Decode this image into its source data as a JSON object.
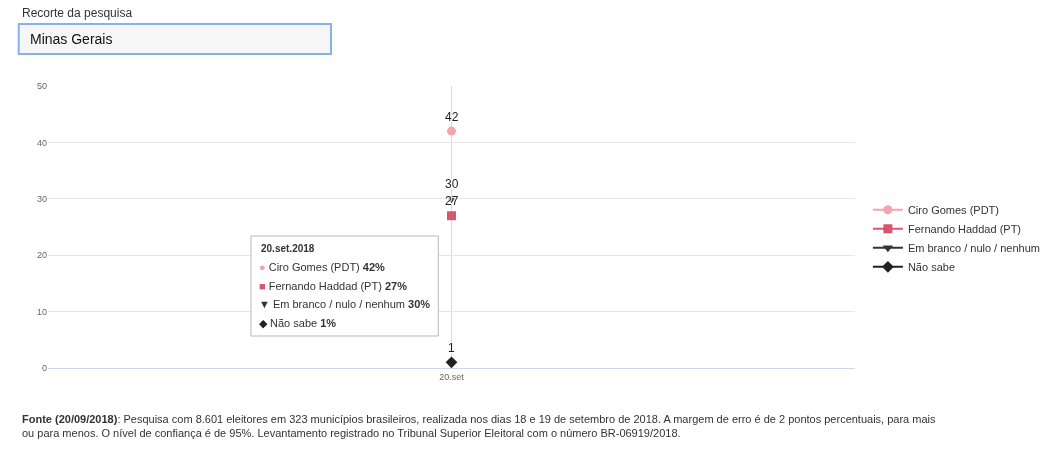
{
  "chart_data": {
    "type": "line",
    "categories": [
      "20.set"
    ],
    "series": [
      {
        "name": "Ciro Gomes (PDT)",
        "color": "#f4a3b1",
        "values": [
          42
        ],
        "marker": "circle"
      },
      {
        "name": "Fernando Haddad (PT)",
        "color": "#d4566f",
        "values": [
          27
        ],
        "marker": "square"
      },
      {
        "name": "Em branco / nulo / nenhum",
        "color": "#333333",
        "values": [
          30
        ],
        "marker": "triangle"
      },
      {
        "name": "Não sabe",
        "color": "#222222",
        "values": [
          1
        ],
        "marker": "diamond"
      }
    ],
    "ylim": [
      0,
      50
    ],
    "yticks": [
      0,
      10,
      20,
      30,
      40,
      50
    ],
    "grid": "y",
    "legend": "right",
    "data_labels": true,
    "ref_lines": [
      {
        "axis": "x",
        "value": "20.set",
        "color": "#d9d9d9"
      }
    ],
    "annotations": [
      "Recorte da pesquisa",
      "Minas Gerais",
      "20.set.2018",
      "● Ciro Gomes (PDT) 42%",
      "■ Fernando Haddad (PT) 27%",
      "▼ Em branco / nulo / nenhum 30%",
      "◆ Não sabe 1%",
      "Fonte (20/09/2018): Pesquisa com 8.601 eleitores em 323 municípios brasileiros, realizada nos dias 18 e 19 de setembro de 2018. A margem de erro é de 2 pontos percentuais, para mais ou para menos. O nível de confiança é de 95%. Levantamento registrado no Tribunal Superior Eleitoral com o número BR-06919/2018."
    ]
  }
}
